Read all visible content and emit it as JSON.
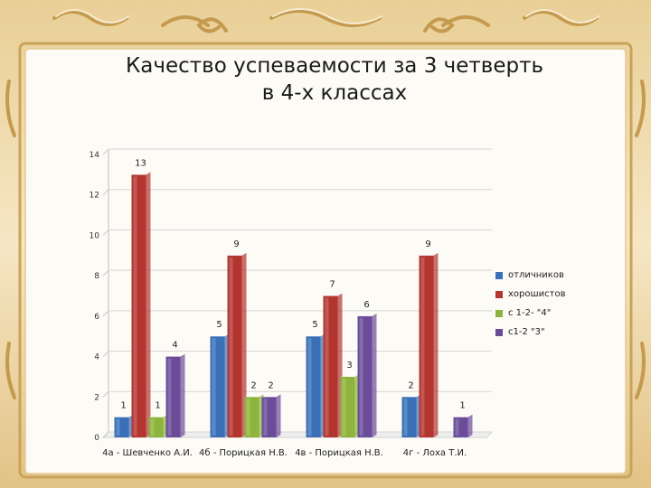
{
  "colors": {
    "frame": "#d9b774",
    "frame_light": "#fbf3df",
    "panel": "#fdfbf6",
    "series": [
      "#3a70b8",
      "#b33530",
      "#8db43c",
      "#6a4c98"
    ]
  },
  "title_lines": [
    "Качество  успеваемости за 3 четверть",
    "в 4-х классах"
  ],
  "chart_data": {
    "type": "bar",
    "title": "Качество  успеваемости за 3 четверть в 4-х классах",
    "categories": [
      "4а - Шевченко А.И.",
      "4б - Порицкая Н.В.",
      "4в - Порицкая Н.В.",
      "4г - Лоха Т.И."
    ],
    "series": [
      {
        "name": "отличников",
        "values": [
          1,
          5,
          5,
          2
        ],
        "labels": [
          "1",
          "5",
          "5",
          "2"
        ]
      },
      {
        "name": "хорошистов",
        "values": [
          13,
          9,
          7,
          9
        ],
        "labels": [
          "13",
          "9",
          "7",
          "9"
        ]
      },
      {
        "name": "с 1-2- \"4\"",
        "values": [
          1,
          2,
          3,
          0
        ],
        "labels": [
          "1",
          "2",
          "3",
          ""
        ]
      },
      {
        "name": "с1-2 \"3\"",
        "values": [
          4,
          2,
          6,
          1
        ],
        "labels": [
          "4",
          "2",
          "6",
          "1"
        ]
      }
    ],
    "yticks": [
      "0",
      "2",
      "4",
      "6",
      "8",
      "10",
      "12",
      "14"
    ],
    "ylim": [
      0,
      14
    ],
    "grid": true,
    "legend_position": "right"
  }
}
